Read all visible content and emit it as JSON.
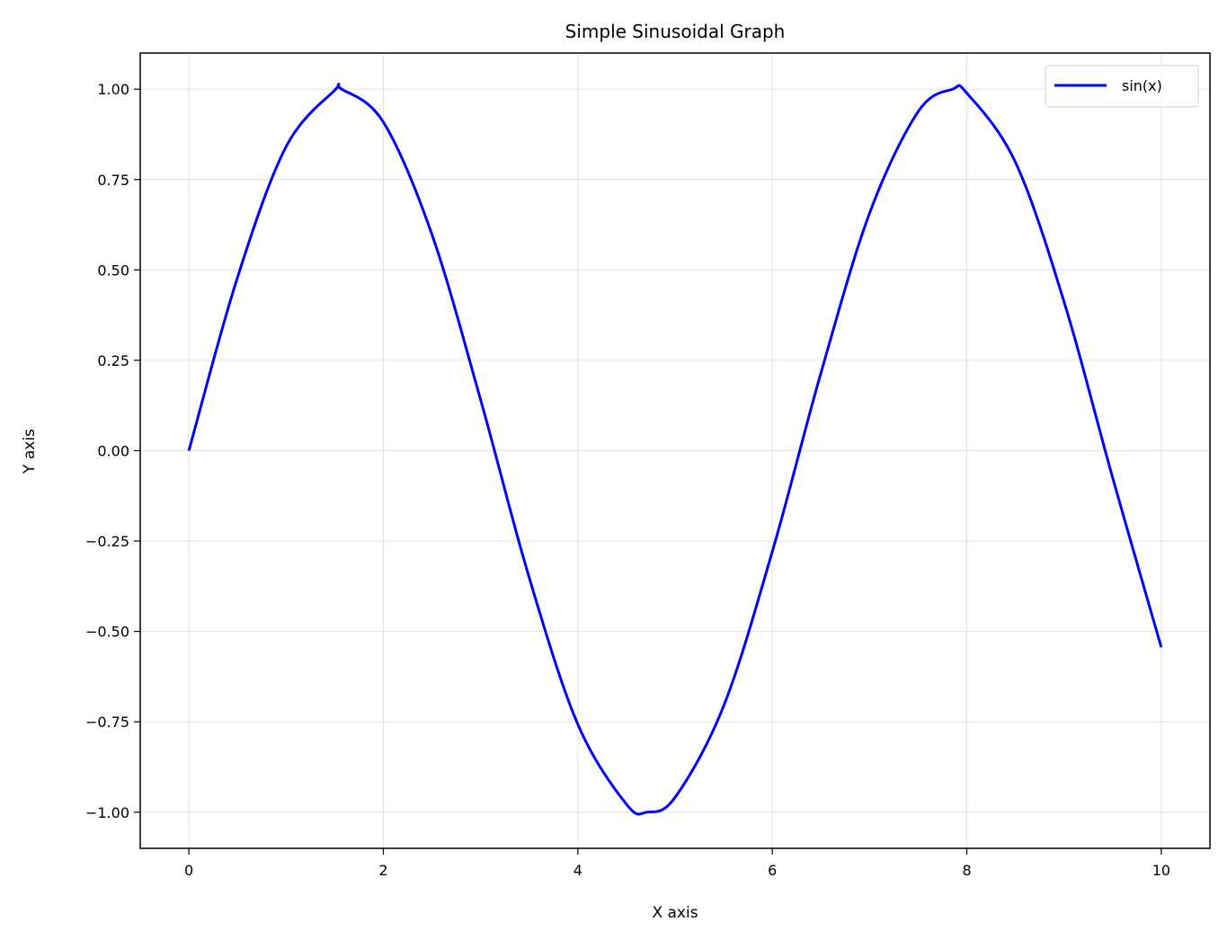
{
  "chart_data": {
    "type": "line",
    "title": "Simple Sinusoidal Graph",
    "xlabel": "X axis",
    "ylabel": "Y axis",
    "xlim": [
      -0.5,
      10.5
    ],
    "ylim": [
      -1.1,
      1.1
    ],
    "grid": true,
    "legend_position": "top-right",
    "x_ticks": [
      0,
      2,
      4,
      6,
      8,
      10
    ],
    "x_tick_labels": [
      "0",
      "2",
      "4",
      "6",
      "8",
      "10"
    ],
    "y_ticks": [
      1.0,
      0.75,
      0.5,
      0.25,
      0.0,
      -0.25,
      -0.5,
      -0.75,
      -1.0
    ],
    "y_tick_labels": [
      "1.00",
      "0.75",
      "0.50",
      "0.25",
      "0.00",
      "−0.25",
      "−0.50",
      "−0.75",
      "−1.00"
    ],
    "series": [
      {
        "name": "sin(x)",
        "color": "#0000ff",
        "x": [
          0,
          0.5,
          1,
          1.5,
          1.571,
          2,
          2.5,
          3,
          3.5,
          4,
          4.5,
          4.712,
          5,
          5.5,
          6,
          6.5,
          7,
          7.5,
          7.854,
          8,
          8.5,
          9,
          9.5,
          10
        ],
        "y": [
          0.0,
          0.479,
          0.841,
          0.997,
          1.0,
          0.909,
          0.598,
          0.141,
          -0.351,
          -0.757,
          -0.978,
          -1.0,
          -0.959,
          -0.706,
          -0.279,
          0.215,
          0.657,
          0.938,
          1.0,
          0.989,
          0.798,
          0.412,
          -0.075,
          -0.544
        ]
      }
    ]
  }
}
